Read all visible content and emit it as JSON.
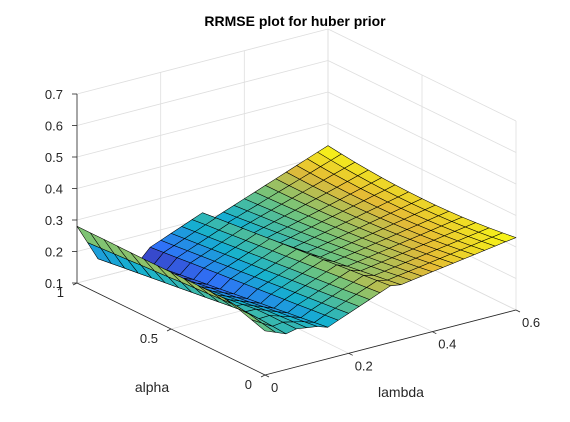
{
  "chart_data": {
    "type": "surface",
    "title": "RRMSE plot for huber prior",
    "xlabel": "lambda",
    "ylabel": "alpha",
    "zlabel": "",
    "xlim": [
      0,
      0.6
    ],
    "ylim": [
      0,
      1
    ],
    "zlim": [
      0.1,
      0.7
    ],
    "x_ticks": [
      "0",
      "0.2",
      "0.4",
      "0.6"
    ],
    "y_ticks": [
      "0",
      "0.5",
      "1"
    ],
    "z_ticks": [
      "0.1",
      "0.2",
      "0.3",
      "0.4",
      "0.5",
      "0.6",
      "0.7"
    ],
    "grid": true,
    "colormap": "parula",
    "colormap_stops": [
      "#3e26a8",
      "#2f72f7",
      "#15b1cf",
      "#71c47c",
      "#e4ba36",
      "#f9fb15"
    ],
    "description": "RRMSE surface over lambda and alpha; valley ~0.15-0.2 at small lambda, rising steeply to ~0.5 at large lambda and high alpha"
  }
}
